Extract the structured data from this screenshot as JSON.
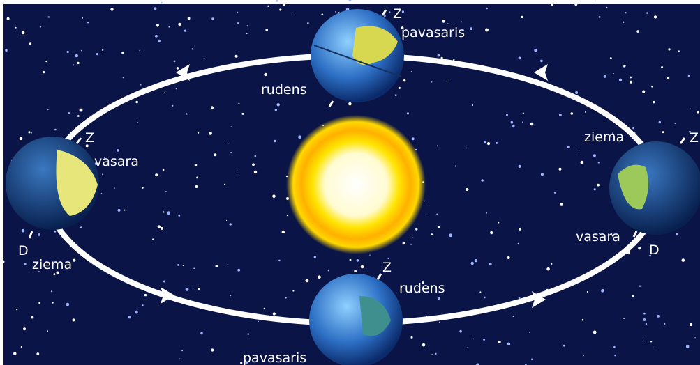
{
  "nodes": [
    {
      "labels": [
        "Z",
        "pavasaris",
        "rudens"
      ]
    },
    {
      "labels": [
        "Z",
        "vasara",
        "D",
        "ziema"
      ]
    },
    {
      "labels": [
        "ziema",
        "Z",
        "vasara",
        "D"
      ]
    },
    {
      "labels": [
        "Z",
        "rudens",
        "pavasaris"
      ]
    }
  ]
}
